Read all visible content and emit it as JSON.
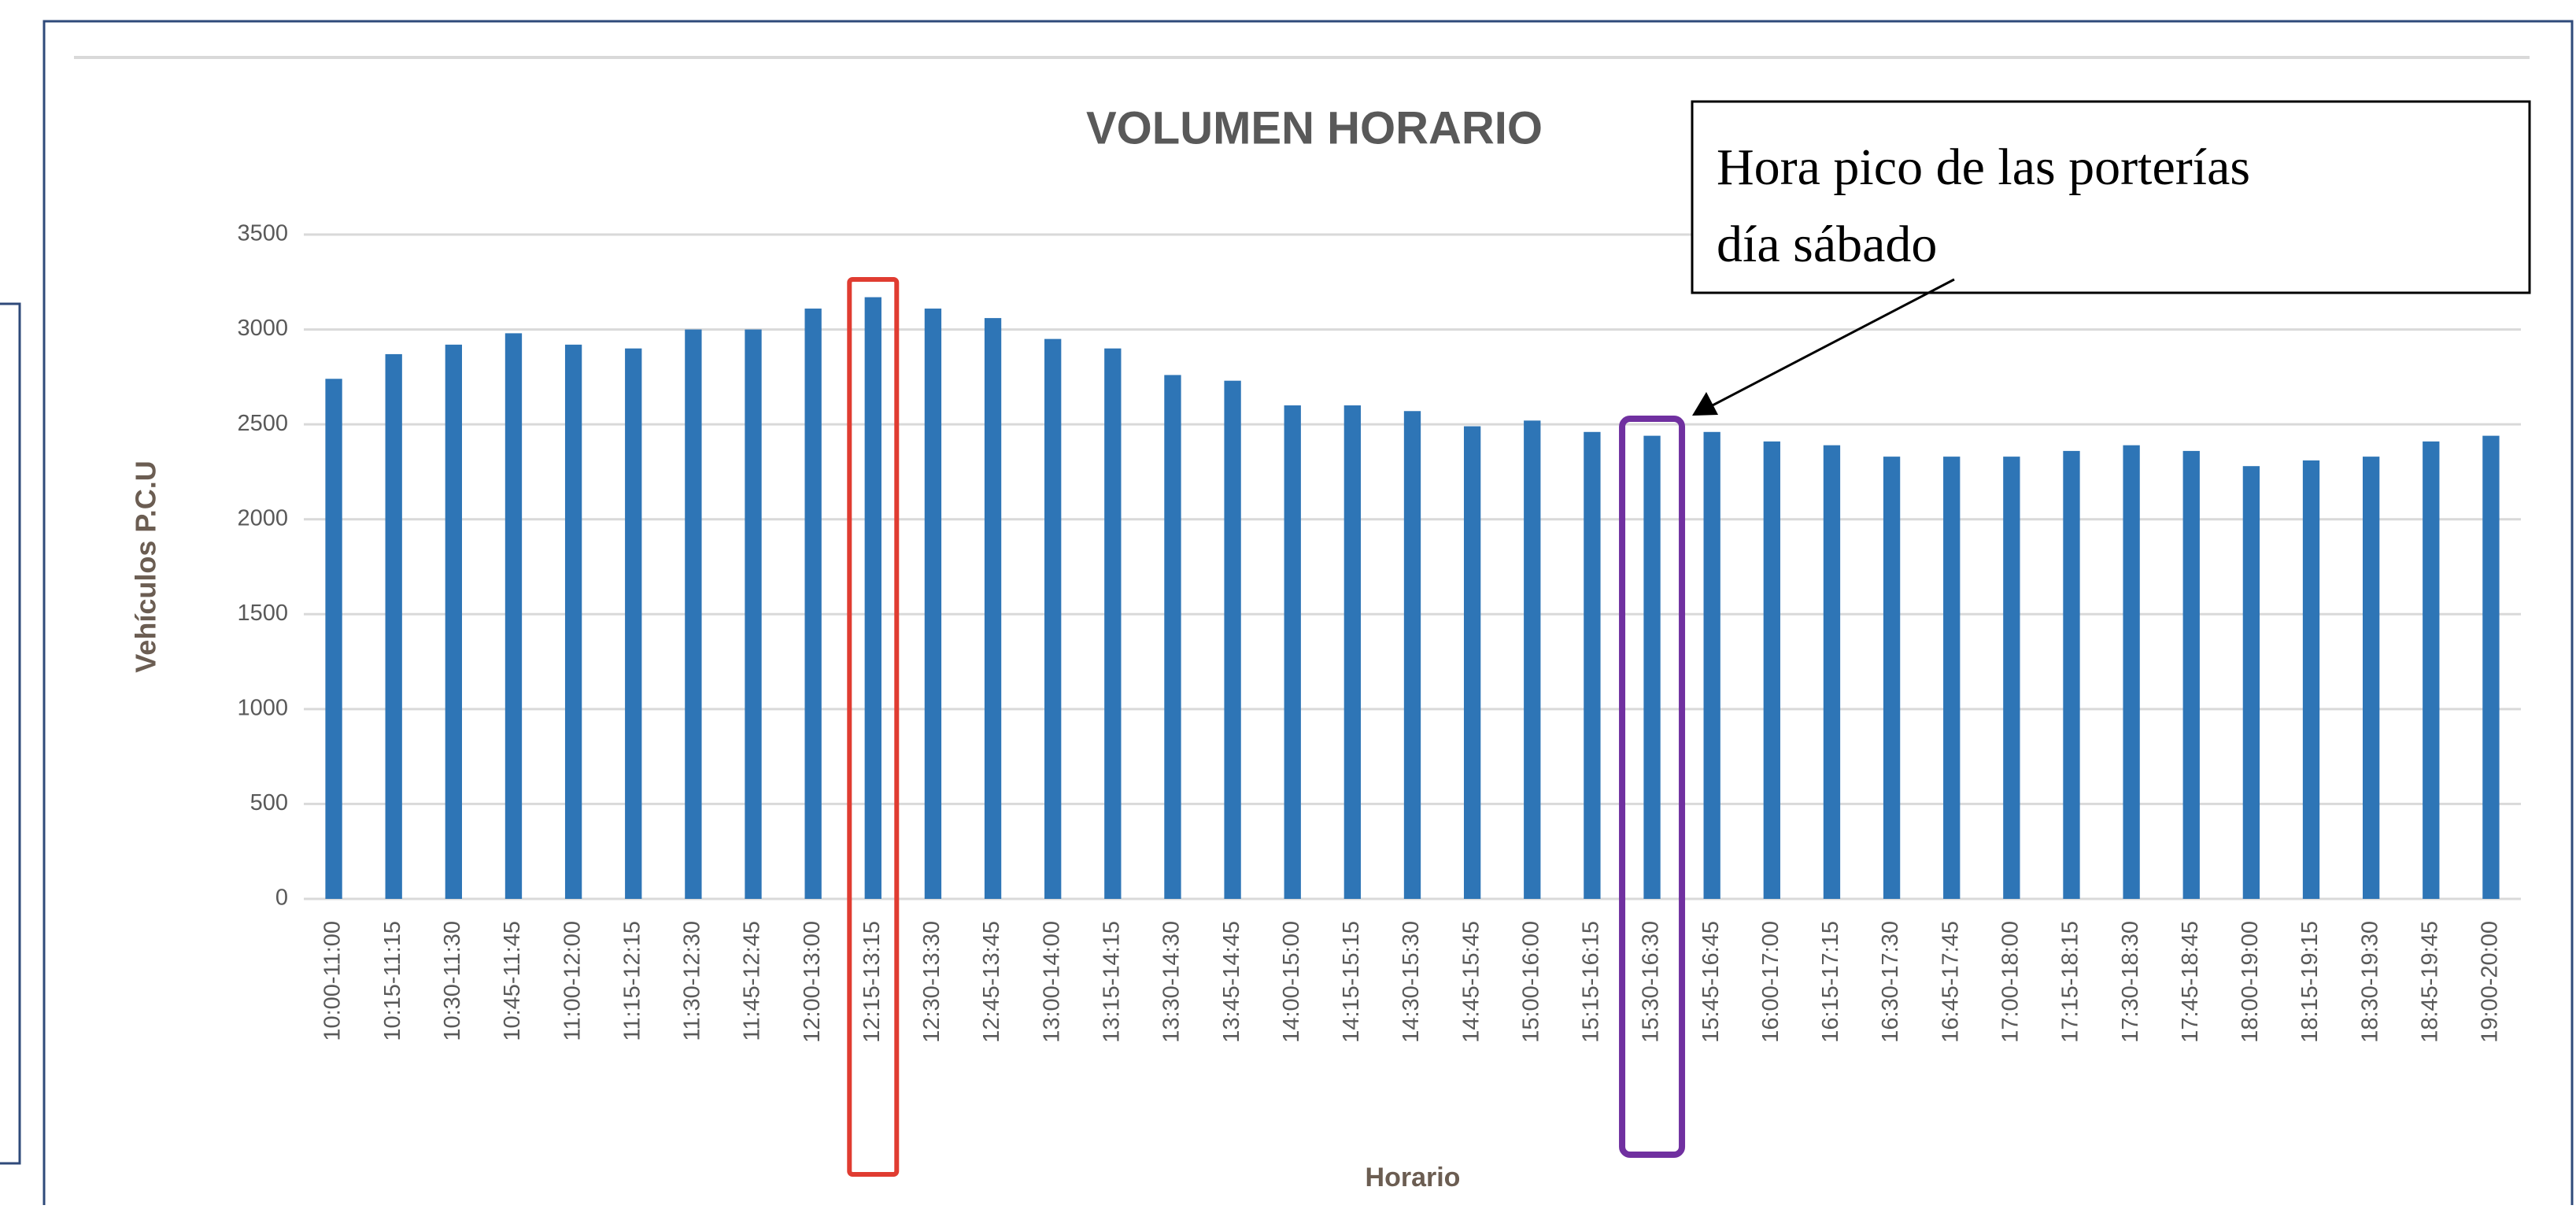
{
  "chart_data": {
    "type": "bar",
    "title": "VOLUMEN HORARIO",
    "y_label": "Vehículos P.C.U",
    "x_label": "Horario",
    "annotation": [
      "Hora pico de las porterías",
      "día sábado"
    ],
    "categories": [
      "10:00-11:00",
      "10:15-11:15",
      "10:30-11:30",
      "10:45-11:45",
      "11:00-12:00",
      "11:15-12:15",
      "11:30-12:30",
      "11:45-12:45",
      "12:00-13:00",
      "12:15-13:15",
      "12:30-13:30",
      "12:45-13:45",
      "13:00-14:00",
      "13:15-14:15",
      "13:30-14:30",
      "13:45-14:45",
      "14:00-15:00",
      "14:15-15:15",
      "14:30-15:30",
      "14:45-15:45",
      "15:00-16:00",
      "15:15-16:15",
      "15:30-16:30",
      "15:45-16:45",
      "16:00-17:00",
      "16:15-17:15",
      "16:30-17:30",
      "16:45-17:45",
      "17:00-18:00",
      "17:15-18:15",
      "17:30-18:30",
      "17:45-18:45",
      "18:00-19:00",
      "18:15-19:15",
      "18:30-19:30",
      "18:45-19:45",
      "19:00-20:00"
    ],
    "values": [
      2740,
      2870,
      2920,
      2980,
      2920,
      2900,
      3000,
      3000,
      3110,
      3170,
      3110,
      3060,
      2950,
      2900,
      2760,
      2730,
      2600,
      2600,
      2570,
      2490,
      2520,
      2460,
      2440,
      2460,
      2410,
      2390,
      2330,
      2330,
      2330,
      2360,
      2390,
      2360,
      2280,
      2310,
      2330,
      2410,
      2440
    ],
    "color": "#2e75b6",
    "ylim": [
      0,
      3500
    ],
    "yticks": [
      0,
      500,
      1000,
      1500,
      2000,
      2500,
      3000,
      3500
    ],
    "grid": true
  }
}
